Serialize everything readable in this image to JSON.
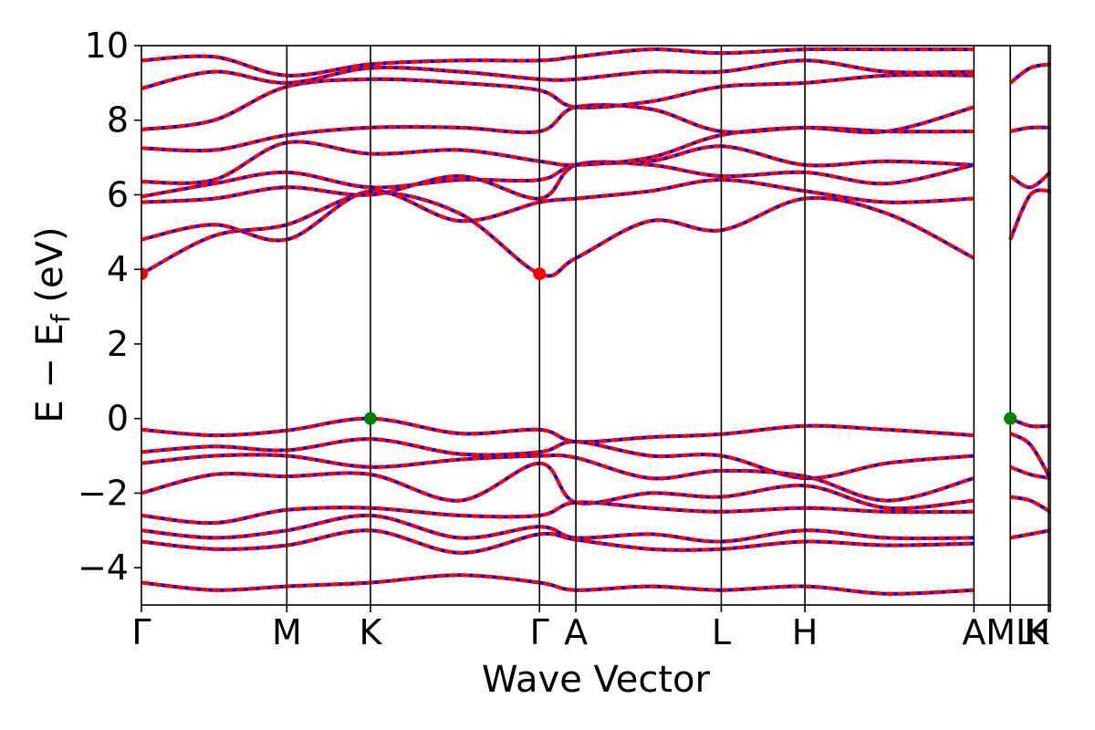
{
  "chart_data": {
    "type": "line",
    "xlabel": "Wave Vector",
    "ylabel": {
      "prefix": "E − E",
      "subscript": "f",
      "suffix": " (eV)"
    },
    "ylim": [
      -5,
      10
    ],
    "yticks": [
      -4,
      -2,
      0,
      2,
      4,
      6,
      8,
      10
    ],
    "ytick_labels": [
      "−4",
      "−2",
      "0",
      "2",
      "4",
      "6",
      "8",
      "10"
    ],
    "xlim": [
      0,
      1
    ],
    "kpoints": [
      {
        "label": "Γ",
        "x": 0.0
      },
      {
        "label": "M",
        "x": 0.16
      },
      {
        "label": "K",
        "x": 0.252
      },
      {
        "label": "Γ",
        "x": 0.438
      },
      {
        "label": "A",
        "x": 0.478
      },
      {
        "label": "L",
        "x": 0.638
      },
      {
        "label": "H",
        "x": 0.73
      },
      {
        "label": "A",
        "x": 0.916
      },
      {
        "label": "ML",
        "x": 0.956
      },
      {
        "label": "K",
        "x": 0.998
      },
      {
        "label": "H",
        "x": 1.0
      }
    ],
    "path_breaks": [
      0.916,
      0.956
    ],
    "band_colors": {
      "primary": "#ff0000",
      "secondary": "#0000ff"
    },
    "conduction_minimum": [
      {
        "x": 0.0,
        "y": 3.88
      },
      {
        "x": 0.438,
        "y": 3.88
      }
    ],
    "valence_maximum": [
      {
        "x": 0.252,
        "y": 0.0
      },
      {
        "x": 0.956,
        "y": 0.0
      }
    ],
    "cbm_color": "#ff0000",
    "vbm_color": "#008000",
    "series": [
      {
        "values": [
          [
            0.0,
            -0.3
          ],
          [
            0.08,
            -0.45
          ],
          [
            0.16,
            -0.32
          ],
          [
            0.252,
            0.0
          ],
          [
            0.35,
            -0.4
          ],
          [
            0.438,
            -0.3
          ],
          [
            0.478,
            -0.62
          ],
          [
            0.56,
            -0.5
          ],
          [
            0.638,
            -0.42
          ],
          [
            0.73,
            -0.2
          ],
          [
            0.82,
            -0.3
          ],
          [
            0.916,
            -0.45
          ]
        ]
      },
      {
        "values": [
          [
            0.0,
            -0.9
          ],
          [
            0.08,
            -0.75
          ],
          [
            0.16,
            -0.85
          ],
          [
            0.252,
            -0.55
          ],
          [
            0.35,
            -0.95
          ],
          [
            0.438,
            -0.9
          ],
          [
            0.478,
            -0.62
          ],
          [
            0.56,
            -1.0
          ],
          [
            0.638,
            -1.0
          ],
          [
            0.73,
            -1.6
          ],
          [
            0.82,
            -1.2
          ],
          [
            0.916,
            -1.0
          ]
        ]
      },
      {
        "values": [
          [
            0.0,
            -1.2
          ],
          [
            0.08,
            -1.0
          ],
          [
            0.16,
            -1.0
          ],
          [
            0.252,
            -1.3
          ],
          [
            0.35,
            -1.1
          ],
          [
            0.438,
            -1.0
          ],
          [
            0.478,
            -1.05
          ],
          [
            0.56,
            -1.6
          ],
          [
            0.638,
            -1.4
          ],
          [
            0.73,
            -1.55
          ],
          [
            0.82,
            -2.2
          ],
          [
            0.916,
            -1.6
          ]
        ]
      },
      {
        "values": [
          [
            0.0,
            -2.0
          ],
          [
            0.08,
            -1.5
          ],
          [
            0.16,
            -1.55
          ],
          [
            0.252,
            -1.5
          ],
          [
            0.35,
            -2.2
          ],
          [
            0.438,
            -1.2
          ],
          [
            0.478,
            -2.25
          ],
          [
            0.56,
            -2.0
          ],
          [
            0.638,
            -2.1
          ],
          [
            0.73,
            -1.8
          ],
          [
            0.82,
            -2.4
          ],
          [
            0.916,
            -2.2
          ]
        ]
      },
      {
        "values": [
          [
            0.0,
            -2.6
          ],
          [
            0.08,
            -2.8
          ],
          [
            0.16,
            -2.45
          ],
          [
            0.252,
            -2.4
          ],
          [
            0.35,
            -2.6
          ],
          [
            0.438,
            -2.6
          ],
          [
            0.478,
            -2.25
          ],
          [
            0.56,
            -2.4
          ],
          [
            0.638,
            -2.5
          ],
          [
            0.73,
            -2.4
          ],
          [
            0.82,
            -2.5
          ],
          [
            0.916,
            -2.5
          ]
        ]
      },
      {
        "values": [
          [
            0.0,
            -3.0
          ],
          [
            0.08,
            -3.2
          ],
          [
            0.16,
            -3.0
          ],
          [
            0.252,
            -2.6
          ],
          [
            0.35,
            -3.2
          ],
          [
            0.438,
            -2.9
          ],
          [
            0.478,
            -3.2
          ],
          [
            0.56,
            -3.1
          ],
          [
            0.638,
            -3.3
          ],
          [
            0.73,
            -3.0
          ],
          [
            0.82,
            -3.2
          ],
          [
            0.916,
            -3.2
          ]
        ]
      },
      {
        "values": [
          [
            0.0,
            -3.3
          ],
          [
            0.08,
            -3.5
          ],
          [
            0.16,
            -3.4
          ],
          [
            0.252,
            -3.0
          ],
          [
            0.35,
            -3.6
          ],
          [
            0.438,
            -3.1
          ],
          [
            0.478,
            -3.25
          ],
          [
            0.56,
            -3.5
          ],
          [
            0.638,
            -3.5
          ],
          [
            0.73,
            -3.3
          ],
          [
            0.82,
            -3.4
          ],
          [
            0.916,
            -3.35
          ]
        ]
      },
      {
        "values": [
          [
            0.0,
            -4.4
          ],
          [
            0.08,
            -4.6
          ],
          [
            0.16,
            -4.5
          ],
          [
            0.252,
            -4.4
          ],
          [
            0.35,
            -4.2
          ],
          [
            0.438,
            -4.4
          ],
          [
            0.478,
            -4.6
          ],
          [
            0.56,
            -4.5
          ],
          [
            0.638,
            -4.6
          ],
          [
            0.73,
            -4.5
          ],
          [
            0.82,
            -4.7
          ],
          [
            0.916,
            -4.6
          ]
        ]
      },
      {
        "values": [
          [
            0.0,
            3.88
          ],
          [
            0.08,
            4.9
          ],
          [
            0.16,
            5.2
          ],
          [
            0.252,
            6.05
          ],
          [
            0.35,
            5.5
          ],
          [
            0.438,
            3.88
          ],
          [
            0.478,
            4.3
          ],
          [
            0.56,
            5.3
          ],
          [
            0.638,
            5.05
          ],
          [
            0.73,
            5.9
          ],
          [
            0.82,
            5.5
          ],
          [
            0.916,
            4.3
          ]
        ]
      },
      {
        "values": [
          [
            0.0,
            4.8
          ],
          [
            0.08,
            5.2
          ],
          [
            0.16,
            4.8
          ],
          [
            0.252,
            6.1
          ],
          [
            0.35,
            5.3
          ],
          [
            0.438,
            5.8
          ],
          [
            0.478,
            5.9
          ],
          [
            0.56,
            6.1
          ],
          [
            0.638,
            6.4
          ],
          [
            0.73,
            6.1
          ],
          [
            0.82,
            5.8
          ],
          [
            0.916,
            5.9
          ]
        ]
      },
      {
        "values": [
          [
            0.0,
            5.8
          ],
          [
            0.08,
            5.9
          ],
          [
            0.16,
            6.2
          ],
          [
            0.252,
            6.0
          ],
          [
            0.35,
            6.5
          ],
          [
            0.438,
            5.9
          ],
          [
            0.478,
            6.8
          ],
          [
            0.56,
            6.8
          ],
          [
            0.638,
            6.5
          ],
          [
            0.73,
            6.6
          ],
          [
            0.82,
            6.3
          ],
          [
            0.916,
            6.8
          ]
        ]
      },
      {
        "values": [
          [
            0.0,
            5.95
          ],
          [
            0.08,
            6.3
          ],
          [
            0.16,
            6.6
          ],
          [
            0.252,
            6.2
          ],
          [
            0.35,
            6.4
          ],
          [
            0.438,
            6.4
          ],
          [
            0.478,
            6.8
          ],
          [
            0.56,
            6.9
          ],
          [
            0.638,
            7.3
          ],
          [
            0.73,
            6.8
          ],
          [
            0.82,
            6.9
          ],
          [
            0.916,
            6.8
          ]
        ]
      },
      {
        "values": [
          [
            0.0,
            6.35
          ],
          [
            0.08,
            6.4
          ],
          [
            0.16,
            7.4
          ],
          [
            0.252,
            7.1
          ],
          [
            0.35,
            7.2
          ],
          [
            0.438,
            6.9
          ],
          [
            0.478,
            6.8
          ],
          [
            0.56,
            7.0
          ],
          [
            0.638,
            7.6
          ],
          [
            0.73,
            7.8
          ],
          [
            0.82,
            7.7
          ],
          [
            0.916,
            7.7
          ]
        ]
      },
      {
        "values": [
          [
            0.0,
            7.25
          ],
          [
            0.08,
            7.2
          ],
          [
            0.16,
            7.6
          ],
          [
            0.252,
            7.8
          ],
          [
            0.35,
            7.8
          ],
          [
            0.438,
            7.7
          ],
          [
            0.478,
            8.35
          ],
          [
            0.56,
            8.3
          ],
          [
            0.638,
            7.7
          ],
          [
            0.73,
            7.8
          ],
          [
            0.82,
            7.7
          ],
          [
            0.916,
            8.35
          ]
        ]
      },
      {
        "values": [
          [
            0.0,
            7.75
          ],
          [
            0.08,
            8.0
          ],
          [
            0.16,
            8.9
          ],
          [
            0.252,
            9.1
          ],
          [
            0.35,
            9.0
          ],
          [
            0.438,
            8.8
          ],
          [
            0.478,
            8.35
          ],
          [
            0.56,
            8.5
          ],
          [
            0.638,
            8.9
          ],
          [
            0.73,
            9.0
          ],
          [
            0.82,
            9.2
          ],
          [
            0.916,
            9.2
          ]
        ]
      },
      {
        "values": [
          [
            0.0,
            8.85
          ],
          [
            0.08,
            9.3
          ],
          [
            0.16,
            9.0
          ],
          [
            0.252,
            9.4
          ],
          [
            0.35,
            9.3
          ],
          [
            0.438,
            9.1
          ],
          [
            0.478,
            9.1
          ],
          [
            0.56,
            9.3
          ],
          [
            0.638,
            9.3
          ],
          [
            0.73,
            9.6
          ],
          [
            0.82,
            9.3
          ],
          [
            0.916,
            9.3
          ]
        ]
      },
      {
        "values": [
          [
            0.0,
            9.6
          ],
          [
            0.08,
            9.7
          ],
          [
            0.16,
            9.2
          ],
          [
            0.252,
            9.5
          ],
          [
            0.35,
            9.6
          ],
          [
            0.438,
            9.6
          ],
          [
            0.478,
            9.7
          ],
          [
            0.56,
            9.9
          ],
          [
            0.638,
            9.8
          ],
          [
            0.73,
            9.9
          ],
          [
            0.82,
            9.9
          ],
          [
            0.916,
            9.9
          ]
        ]
      },
      {
        "values": [
          [
            0.956,
            0.0
          ],
          [
            0.978,
            -0.2
          ],
          [
            1.0,
            -0.2
          ]
        ]
      },
      {
        "values": [
          [
            0.956,
            -0.4
          ],
          [
            0.978,
            -0.7
          ],
          [
            1.0,
            -1.6
          ]
        ]
      },
      {
        "values": [
          [
            0.956,
            -1.3
          ],
          [
            0.978,
            -1.5
          ],
          [
            1.0,
            -1.6
          ]
        ]
      },
      {
        "values": [
          [
            0.956,
            -2.1
          ],
          [
            0.978,
            -2.2
          ],
          [
            1.0,
            -2.5
          ]
        ]
      },
      {
        "values": [
          [
            0.956,
            -3.2
          ],
          [
            0.978,
            -3.1
          ],
          [
            1.0,
            -3.0
          ]
        ]
      },
      {
        "values": [
          [
            0.956,
            4.8
          ],
          [
            0.978,
            6.0
          ],
          [
            1.0,
            6.1
          ]
        ]
      },
      {
        "values": [
          [
            0.956,
            6.5
          ],
          [
            0.978,
            6.2
          ],
          [
            1.0,
            6.6
          ]
        ]
      },
      {
        "values": [
          [
            0.956,
            7.7
          ],
          [
            0.978,
            7.8
          ],
          [
            1.0,
            7.8
          ]
        ]
      },
      {
        "values": [
          [
            0.956,
            9.0
          ],
          [
            0.978,
            9.4
          ],
          [
            1.0,
            9.5
          ]
        ]
      }
    ]
  }
}
